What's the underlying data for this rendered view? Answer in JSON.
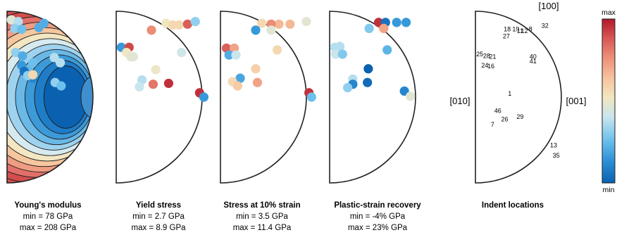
{
  "chart_data": {
    "type": "scatter",
    "colormap": [
      "#0a61b0",
      "#2a8fd6",
      "#6cc0ec",
      "#c7e5ef",
      "#f2e6c0",
      "#f6c39d",
      "#ec8d76",
      "#d55452",
      "#b2182b"
    ],
    "contour_colors": [
      "#0a61b0",
      "#1f7cc7",
      "#3d9ad8",
      "#6ab8e6",
      "#9fd2ee",
      "#d6eaef",
      "#f3e6c2",
      "#f6c69e",
      "#ef9d82",
      "#e2706a",
      "#d24d4d"
    ],
    "colorbar": {
      "max_label": "max",
      "min_label": "min"
    },
    "axis_labels": {
      "top": "[100]",
      "left": "[010]",
      "right": "[001]"
    },
    "panels": [
      {
        "title": "Young's modulus",
        "min_text": "min = 78 GPa",
        "max_text": "max = 208 GPa",
        "render": "contour",
        "points": [
          {
            "x": 0.05,
            "y": 0.9,
            "v": 0.45
          },
          {
            "x": 0.13,
            "y": 0.88,
            "v": 0.35
          },
          {
            "x": 0.09,
            "y": 0.8,
            "v": 0.3
          },
          {
            "x": 0.17,
            "y": 0.79,
            "v": 0.25
          },
          {
            "x": 0.37,
            "y": 0.81,
            "v": 0.2
          },
          {
            "x": 0.43,
            "y": 0.86,
            "v": 0.2
          },
          {
            "x": 0.17,
            "y": 0.37,
            "v": 0.15
          },
          {
            "x": 0.1,
            "y": 0.52,
            "v": 0.3
          },
          {
            "x": 0.18,
            "y": 0.48,
            "v": 0.2
          },
          {
            "x": 0.55,
            "y": 0.46,
            "v": 0.35
          },
          {
            "x": 0.3,
            "y": 0.4,
            "v": 0.25
          },
          {
            "x": 0.2,
            "y": 0.3,
            "v": 0.05
          },
          {
            "x": 0.3,
            "y": 0.22,
            "v": 0.1
          },
          {
            "x": 0.24,
            "y": 0.25,
            "v": 0.3
          },
          {
            "x": 0.3,
            "y": 0.26,
            "v": 0.55
          },
          {
            "x": 0.62,
            "y": 0.4,
            "v": 0.35
          },
          {
            "x": 0.56,
            "y": 0.17,
            "v": 0.3
          },
          {
            "x": 0.63,
            "y": 0.13,
            "v": 0.25
          }
        ]
      },
      {
        "title": "Yield stress",
        "min_text": "min = 2.7 GPa",
        "max_text": "max = 8.9 GPa",
        "render": "scatter",
        "points": [
          {
            "x": 0.58,
            "y": 0.86,
            "v": 0.5
          },
          {
            "x": 0.73,
            "y": 0.84,
            "v": 0.55
          },
          {
            "x": 0.83,
            "y": 0.85,
            "v": 0.85
          },
          {
            "x": 0.92,
            "y": 0.88,
            "v": 0.3
          },
          {
            "x": 0.41,
            "y": 0.78,
            "v": 0.75
          },
          {
            "x": 0.66,
            "y": 0.84,
            "v": 0.55
          },
          {
            "x": 0.06,
            "y": 0.58,
            "v": 0.15
          },
          {
            "x": 0.15,
            "y": 0.58,
            "v": 0.9
          },
          {
            "x": 0.12,
            "y": 0.52,
            "v": 0.5
          },
          {
            "x": 0.2,
            "y": 0.47,
            "v": 0.45
          },
          {
            "x": 0.17,
            "y": 0.47,
            "v": 0.45
          },
          {
            "x": 0.76,
            "y": 0.52,
            "v": 0.4
          },
          {
            "x": 0.46,
            "y": 0.32,
            "v": 0.48
          },
          {
            "x": 0.3,
            "y": 0.2,
            "v": 0.35
          },
          {
            "x": 0.43,
            "y": 0.15,
            "v": 0.8
          },
          {
            "x": 0.61,
            "y": 0.16,
            "v": 0.95
          },
          {
            "x": 0.27,
            "y": 0.12,
            "v": 0.38
          },
          {
            "x": 0.97,
            "y": 0.05,
            "v": 0.95
          },
          {
            "x": 1.02,
            "y": 0.0,
            "v": 0.15
          }
        ]
      },
      {
        "title": "Stress at 10% strain",
        "min_text": "min = 3.5 GPa",
        "max_text": "max = 11.4 GPa",
        "render": "scatter",
        "points": [
          {
            "x": 0.48,
            "y": 0.86,
            "v": 0.55
          },
          {
            "x": 0.68,
            "y": 0.85,
            "v": 0.65
          },
          {
            "x": 0.81,
            "y": 0.85,
            "v": 0.65
          },
          {
            "x": 1.0,
            "y": 0.88,
            "v": 0.45
          },
          {
            "x": 0.59,
            "y": 0.85,
            "v": 0.75
          },
          {
            "x": 0.41,
            "y": 0.78,
            "v": 0.15
          },
          {
            "x": 0.59,
            "y": 0.78,
            "v": 0.45
          },
          {
            "x": 0.07,
            "y": 0.57,
            "v": 0.85
          },
          {
            "x": 0.16,
            "y": 0.57,
            "v": 0.7
          },
          {
            "x": 0.1,
            "y": 0.49,
            "v": 0.2
          },
          {
            "x": 0.18,
            "y": 0.49,
            "v": 0.38
          },
          {
            "x": 0.66,
            "y": 0.55,
            "v": 0.55
          },
          {
            "x": 0.41,
            "y": 0.33,
            "v": 0.58
          },
          {
            "x": 0.23,
            "y": 0.22,
            "v": 0.18
          },
          {
            "x": 0.43,
            "y": 0.17,
            "v": 0.7
          },
          {
            "x": 0.14,
            "y": 0.18,
            "v": 0.55
          },
          {
            "x": 0.2,
            "y": 0.13,
            "v": 0.6
          },
          {
            "x": 1.03,
            "y": 0.05,
            "v": 0.95
          },
          {
            "x": 1.06,
            "y": 0.0,
            "v": 0.25
          }
        ]
      },
      {
        "title": "Plastic-strain recovery",
        "min_text": "min = -4% GPa",
        "max_text": "max = 23% GPa",
        "render": "scatter",
        "points": [
          {
            "x": 0.57,
            "y": 0.87,
            "v": 0.95
          },
          {
            "x": 0.65,
            "y": 0.87,
            "v": 0.05
          },
          {
            "x": 0.78,
            "y": 0.87,
            "v": 0.15
          },
          {
            "x": 0.89,
            "y": 0.87,
            "v": 0.15
          },
          {
            "x": 0.46,
            "y": 0.8,
            "v": 0.28
          },
          {
            "x": 0.63,
            "y": 0.8,
            "v": 0.7
          },
          {
            "x": 0.06,
            "y": 0.58,
            "v": 0.35
          },
          {
            "x": 0.12,
            "y": 0.59,
            "v": 0.35
          },
          {
            "x": 0.07,
            "y": 0.5,
            "v": 0.38
          },
          {
            "x": 0.15,
            "y": 0.5,
            "v": 0.28
          },
          {
            "x": 0.67,
            "y": 0.55,
            "v": 0.22
          },
          {
            "x": 0.45,
            "y": 0.33,
            "v": 0.0
          },
          {
            "x": 0.27,
            "y": 0.21,
            "v": 0.35
          },
          {
            "x": 0.44,
            "y": 0.17,
            "v": 0.03
          },
          {
            "x": 0.27,
            "y": 0.15,
            "v": 0.1
          },
          {
            "x": 0.21,
            "y": 0.11,
            "v": 0.3
          },
          {
            "x": 0.87,
            "y": 0.07,
            "v": 0.1
          },
          {
            "x": 0.94,
            "y": 0.01,
            "v": 0.45
          }
        ]
      },
      {
        "title": "Indent locations",
        "min_text": "",
        "max_text": "",
        "render": "labels",
        "labels": [
          {
            "t": "18",
            "x": 0.37,
            "y": 0.79
          },
          {
            "t": "19",
            "x": 0.47,
            "y": 0.79
          },
          {
            "t": "8",
            "x": 0.64,
            "y": 0.79
          },
          {
            "t": "32",
            "x": 0.81,
            "y": 0.83
          },
          {
            "t": "11",
            "x": 0.52,
            "y": 0.77
          },
          {
            "t": "12",
            "x": 0.57,
            "y": 0.77
          },
          {
            "t": "27",
            "x": 0.36,
            "y": 0.71
          },
          {
            "t": "25",
            "x": 0.05,
            "y": 0.5
          },
          {
            "t": "28",
            "x": 0.13,
            "y": 0.48
          },
          {
            "t": "21",
            "x": 0.2,
            "y": 0.47
          },
          {
            "t": "40",
            "x": 0.67,
            "y": 0.47
          },
          {
            "t": "41",
            "x": 0.67,
            "y": 0.42
          },
          {
            "t": "24",
            "x": 0.11,
            "y": 0.37
          },
          {
            "t": "16",
            "x": 0.18,
            "y": 0.36
          },
          {
            "t": "1",
            "x": 0.4,
            "y": 0.04
          },
          {
            "t": "46",
            "x": 0.26,
            "y": -0.16
          },
          {
            "t": "29",
            "x": 0.52,
            "y": -0.23
          },
          {
            "t": "26",
            "x": 0.34,
            "y": -0.26
          },
          {
            "t": "7",
            "x": 0.2,
            "y": -0.32
          },
          {
            "t": "13",
            "x": 0.91,
            "y": -0.56
          },
          {
            "t": "35",
            "x": 0.94,
            "y": -0.68
          }
        ]
      }
    ]
  }
}
